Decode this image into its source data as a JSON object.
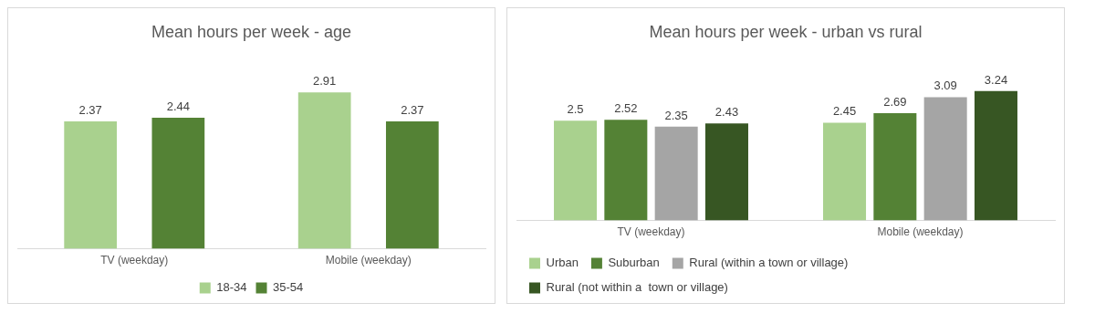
{
  "chart_data": [
    {
      "type": "bar",
      "title": "Mean hours per week - age",
      "categories": [
        "TV (weekday)",
        "Mobile (weekday)"
      ],
      "data_labels": true,
      "legend": "bottom",
      "grid": false,
      "series": [
        {
          "name": "18-34",
          "color": "#a9d18e",
          "values": [
            2.37,
            2.91
          ]
        },
        {
          "name": "35-54",
          "color": "#548235",
          "values": [
            2.44,
            2.37
          ]
        }
      ]
    },
    {
      "type": "bar",
      "title": "Mean hours per week - urban vs rural",
      "categories": [
        "TV (weekday)",
        "Mobile (weekday)"
      ],
      "data_labels": true,
      "legend": "bottom",
      "grid": false,
      "series": [
        {
          "name": "Urban",
          "color": "#a9d18e",
          "values": [
            2.5,
            2.45
          ]
        },
        {
          "name": "Suburban",
          "color": "#548235",
          "values": [
            2.52,
            2.69
          ]
        },
        {
          "name": "Rural (within a town or village)",
          "color": "#a5a5a5",
          "values": [
            2.35,
            3.09
          ]
        },
        {
          "name": "Rural (not within a  town or village)",
          "color": "#375623",
          "values": [
            2.43,
            3.24
          ]
        }
      ]
    }
  ]
}
